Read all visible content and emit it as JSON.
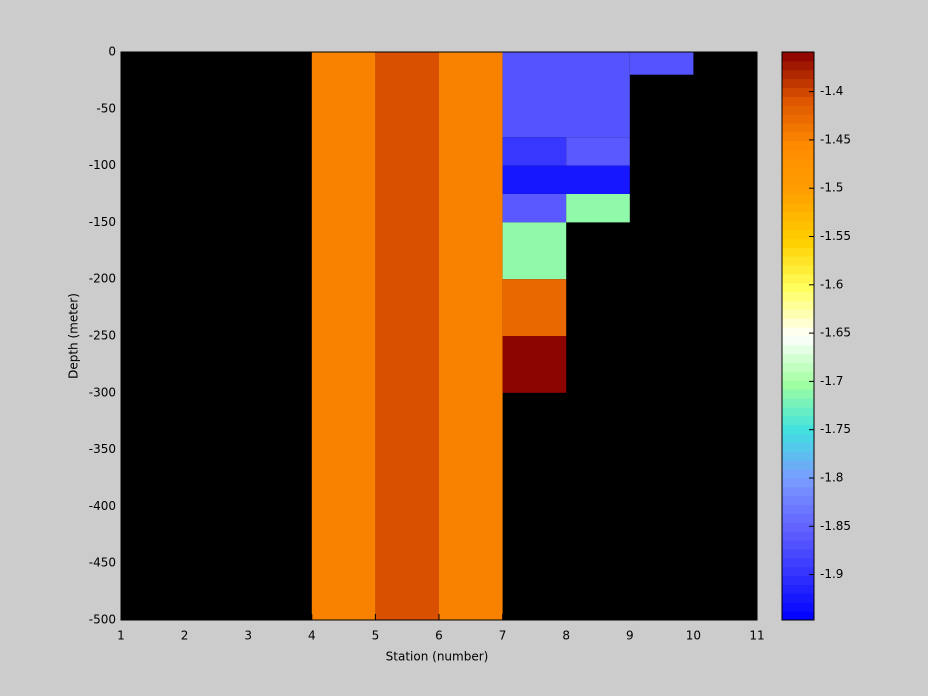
{
  "chart_data": {
    "type": "heatmap",
    "xlabel": "Station (number)",
    "ylabel": "Depth (meter)",
    "xlim": [
      1,
      11
    ],
    "ylim": [
      -500,
      0
    ],
    "xticks": [
      1,
      2,
      3,
      4,
      5,
      6,
      7,
      8,
      9,
      10,
      11
    ],
    "yticks": [
      0,
      -50,
      -100,
      -150,
      -200,
      -250,
      -300,
      -350,
      -400,
      -450,
      -500
    ],
    "background": "#000000",
    "clim": [
      -1.947,
      -1.359
    ],
    "cticks": [
      -1.4,
      -1.45,
      -1.5,
      -1.55,
      -1.6,
      -1.65,
      -1.7,
      -1.75,
      -1.8,
      -1.85,
      -1.9
    ],
    "colormap": [
      "#0000ff",
      "#3434ff",
      "#6464ff",
      "#7a9cff",
      "#40e0e0",
      "#a0ffa0",
      "#ffffff",
      "#ffff60",
      "#ffd000",
      "#ffa000",
      "#ff8c00",
      "#dd5500",
      "#880000"
    ],
    "cells": [
      {
        "x": [
          4,
          5
        ],
        "y": [
          0,
          -500
        ],
        "value": -1.447
      },
      {
        "x": [
          5,
          6
        ],
        "y": [
          0,
          -500
        ],
        "value": -1.405
      },
      {
        "x": [
          6,
          7
        ],
        "y": [
          0,
          -500
        ],
        "value": -1.447
      },
      {
        "x": [
          7,
          9
        ],
        "y": [
          0,
          -75
        ],
        "value": -1.865
      },
      {
        "x": [
          9,
          10
        ],
        "y": [
          0,
          -20
        ],
        "value": -1.865
      },
      {
        "x": [
          7,
          8
        ],
        "y": [
          -75,
          -100
        ],
        "value": -1.895
      },
      {
        "x": [
          8,
          9
        ],
        "y": [
          -75,
          -100
        ],
        "value": -1.86
      },
      {
        "x": [
          7,
          9
        ],
        "y": [
          -100,
          -125
        ],
        "value": -1.925
      },
      {
        "x": [
          7,
          8
        ],
        "y": [
          -125,
          -150
        ],
        "value": -1.86
      },
      {
        "x": [
          8,
          9
        ],
        "y": [
          -125,
          -150
        ],
        "value": -1.71
      },
      {
        "x": [
          7,
          8
        ],
        "y": [
          -150,
          -200
        ],
        "value": -1.71
      },
      {
        "x": [
          7,
          8
        ],
        "y": [
          -200,
          -250
        ],
        "value": -1.425
      },
      {
        "x": [
          7,
          8
        ],
        "y": [
          -250,
          -300
        ],
        "value": -1.362
      }
    ]
  }
}
